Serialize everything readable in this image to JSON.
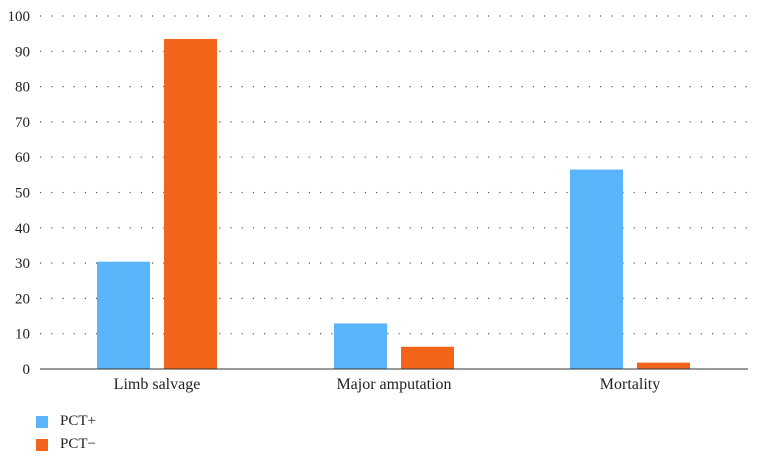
{
  "chart_data": {
    "type": "bar",
    "categories": [
      "Limb salvage",
      "Major amputation",
      "Mortality"
    ],
    "series": [
      {
        "name": "PCT+",
        "color": "#5ab4fa",
        "values": [
          30.4,
          12.9,
          56.5
        ]
      },
      {
        "name": "PCT−",
        "color": "#f26419",
        "values": [
          93.5,
          6.3,
          1.8
        ]
      }
    ],
    "yticks": [
      0,
      10,
      20,
      30,
      40,
      50,
      60,
      70,
      80,
      90,
      100
    ],
    "ylim": [
      0,
      100
    ],
    "grid": "horizontal dotted",
    "legend_position": "bottom-left"
  }
}
